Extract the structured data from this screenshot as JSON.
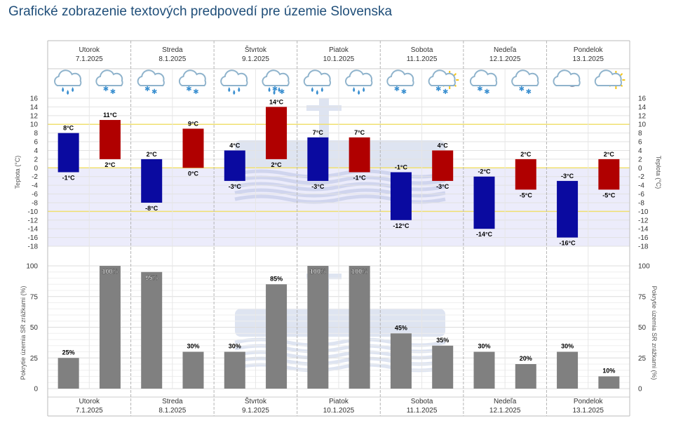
{
  "page": {
    "title": "Grafické zobrazenie textových predpovedí pre územie Slovenska"
  },
  "colors": {
    "night_bar": "#0a0aa0",
    "day_bar": "#b00000",
    "precip_bar": "#808080",
    "threshold_line": "#f0e070",
    "negative_band": "#ececfb",
    "title": "#1f4e79"
  },
  "days": [
    {
      "name": "Utorok",
      "date": "7.1.2025",
      "icons": [
        "rain-icon",
        "snow-icon"
      ]
    },
    {
      "name": "Streda",
      "date": "8.1.2025",
      "icons": [
        "snow-icon",
        "snow-icon"
      ]
    },
    {
      "name": "Štvrtok",
      "date": "9.1.2025",
      "icons": [
        "rain-icon",
        "sleet-icon"
      ]
    },
    {
      "name": "Piatok",
      "date": "10.1.2025",
      "icons": [
        "rain-icon",
        "rain-icon"
      ]
    },
    {
      "name": "Sobota",
      "date": "11.1.2025",
      "icons": [
        "snow-icon",
        "snow-sun-icon"
      ]
    },
    {
      "name": "Nedeľa",
      "date": "12.1.2025",
      "icons": [
        "snow-icon",
        "snow-icon"
      ]
    },
    {
      "name": "Pondelok",
      "date": "13.1.2025",
      "icons": [
        "cloud-moon-icon",
        "cloud-sun-icon"
      ]
    }
  ],
  "chart_data": [
    {
      "type": "bar",
      "ylabel": "Teplota (°C)",
      "ylim": [
        -18,
        16
      ],
      "yticks": [
        16,
        14,
        12,
        10,
        8,
        6,
        4,
        2,
        0,
        -2,
        -4,
        -6,
        -8,
        -10,
        -12,
        -14,
        -16,
        -18
      ],
      "threshold_lines": [
        10,
        0,
        -10
      ],
      "series": [
        {
          "label_top": [
            "8°C",
            "2°C",
            "4°C",
            "7°C",
            "-1°C",
            "-2°C",
            "-3°C"
          ],
          "label_bottom": [
            "-1°C",
            "-8°C",
            "-3°C",
            "-3°C",
            "-12°C",
            "-14°C",
            "-16°C"
          ],
          "low": [
            -1,
            -8,
            -3,
            -3,
            -12,
            -14,
            -16
          ],
          "high": [
            8,
            2,
            4,
            7,
            -1,
            -2,
            -3
          ]
        },
        {
          "label_top": [
            "11°C",
            "9°C",
            "14°C",
            "7°C",
            "4°C",
            "2°C",
            "2°C"
          ],
          "label_bottom": [
            "2°C",
            "0°C",
            "2°C",
            "-1°C",
            "-3°C",
            "-5°C",
            "-5°C"
          ],
          "low": [
            2,
            0,
            2,
            -1,
            -3,
            -5,
            -5
          ],
          "high": [
            11,
            9,
            14,
            7,
            4,
            2,
            2
          ]
        }
      ]
    },
    {
      "type": "bar",
      "ylabel": "Pokrytie územia SR zrážkami (%)",
      "ylim": [
        0,
        100
      ],
      "yticks": [
        100,
        75,
        50,
        25,
        0
      ],
      "values": [
        [
          25,
          100
        ],
        [
          95,
          30
        ],
        [
          30,
          85
        ],
        [
          100,
          100
        ],
        [
          45,
          35
        ],
        [
          30,
          20
        ],
        [
          30,
          10
        ]
      ],
      "labels": [
        [
          "25%",
          "100%"
        ],
        [
          "95%",
          "30%"
        ],
        [
          "30%",
          "85%"
        ],
        [
          "100%",
          "100%"
        ],
        [
          "45%",
          "35%"
        ],
        [
          "30%",
          "20%"
        ],
        [
          "30%",
          "10%"
        ]
      ]
    }
  ]
}
